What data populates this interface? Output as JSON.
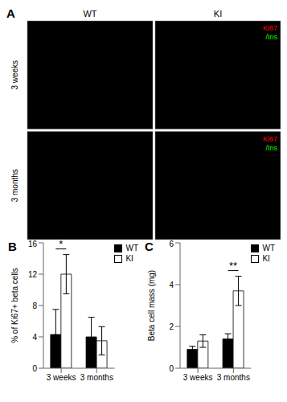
{
  "chart_data": [
    {
      "type": "image",
      "title": "A",
      "categories": [
        "WT",
        "KI"
      ],
      "annotations": [
        {
          "text": "3 weeks"
        },
        {
          "text": "3 months"
        },
        {
          "text": "Ki67",
          "color": "red"
        },
        {
          "text": "/Ins",
          "color": "lime"
        }
      ]
    },
    {
      "type": "bar",
      "title": "B",
      "categories": [
        "3 weeks",
        "3 months"
      ],
      "series": [
        {
          "name": "WT",
          "color": "#000000",
          "values": [
            4.3,
            4.0
          ],
          "errors": [
            3.2,
            2.5
          ]
        },
        {
          "name": "KI",
          "color": "#ffffff",
          "values": [
            12.0,
            3.5
          ],
          "errors": [
            2.5,
            1.8
          ]
        }
      ],
      "ylabel": "% of Ki67+ beta cells",
      "ylim": [
        0,
        16
      ],
      "yticks": [
        0,
        4,
        8,
        12,
        16
      ],
      "legend": "upper right",
      "annotations": [
        {
          "text": "*",
          "category": "3 weeks"
        }
      ]
    },
    {
      "type": "bar",
      "title": "C",
      "categories": [
        "3 weeks",
        "3 months"
      ],
      "series": [
        {
          "name": "WT",
          "color": "#000000",
          "values": [
            0.9,
            1.4
          ],
          "errors": [
            0.15,
            0.25
          ]
        },
        {
          "name": "KI",
          "color": "#ffffff",
          "values": [
            1.3,
            3.7
          ],
          "errors": [
            0.3,
            0.7
          ]
        }
      ],
      "ylabel": "Beta cell mass (mg)",
      "ylim": [
        0,
        6
      ],
      "yticks": [
        0,
        2,
        4,
        6
      ],
      "legend": "upper right",
      "annotations": [
        {
          "text": "**",
          "category": "3 months"
        }
      ]
    }
  ]
}
